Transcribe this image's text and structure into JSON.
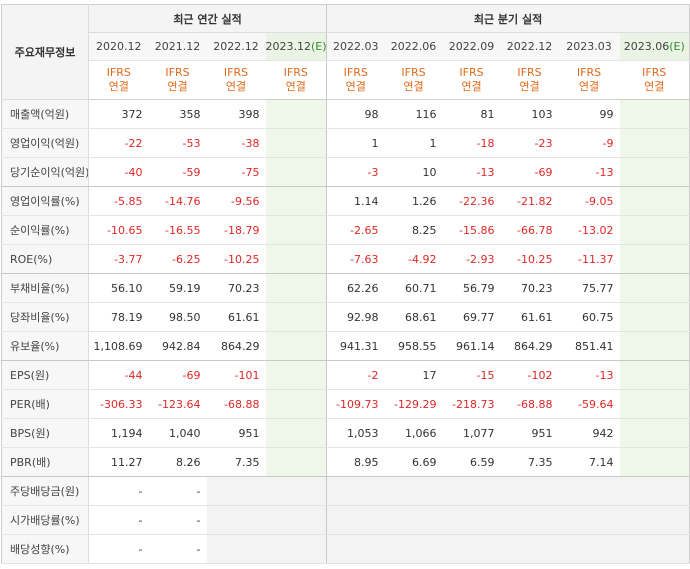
{
  "table": {
    "corner_label": "주요재무정보",
    "annual_title": "최근 연간 실적",
    "quarterly_title": "최근 분기 실적",
    "ifrs_line1": "IFRS",
    "ifrs_line2": "연결",
    "periods": [
      {
        "label": "2020.12",
        "est": ""
      },
      {
        "label": "2021.12",
        "est": ""
      },
      {
        "label": "2022.12",
        "est": ""
      },
      {
        "label": "2023.12",
        "est": "(E)"
      },
      {
        "label": "2022.03",
        "est": ""
      },
      {
        "label": "2022.06",
        "est": ""
      },
      {
        "label": "2022.09",
        "est": ""
      },
      {
        "label": "2022.12",
        "est": ""
      },
      {
        "label": "2023.03",
        "est": ""
      },
      {
        "label": "2023.06",
        "est": "(E)"
      }
    ],
    "rows": [
      {
        "label": "매출액(억원)",
        "values": [
          "372",
          "358",
          "398",
          "",
          "98",
          "116",
          "81",
          "103",
          "99",
          ""
        ]
      },
      {
        "label": "영업이익(억원)",
        "values": [
          "-22",
          "-53",
          "-38",
          "",
          "1",
          "1",
          "-18",
          "-23",
          "-9",
          ""
        ]
      },
      {
        "label": "당기순이익(억원)",
        "values": [
          "-40",
          "-59",
          "-75",
          "",
          "-3",
          "10",
          "-13",
          "-69",
          "-13",
          ""
        ]
      },
      {
        "label": "영업이익률(%)",
        "values": [
          "-5.85",
          "-14.76",
          "-9.56",
          "",
          "1.14",
          "1.26",
          "-22.36",
          "-21.82",
          "-9.05",
          ""
        ]
      },
      {
        "label": "순이익률(%)",
        "values": [
          "-10.65",
          "-16.55",
          "-18.79",
          "",
          "-2.65",
          "8.25",
          "-15.86",
          "-66.78",
          "-13.02",
          ""
        ]
      },
      {
        "label": "ROE(%)",
        "values": [
          "-3.77",
          "-6.25",
          "-10.25",
          "",
          "-7.63",
          "-4.92",
          "-2.93",
          "-10.25",
          "-11.37",
          ""
        ]
      },
      {
        "label": "부채비율(%)",
        "values": [
          "56.10",
          "59.19",
          "70.23",
          "",
          "62.26",
          "60.71",
          "56.79",
          "70.23",
          "75.77",
          ""
        ]
      },
      {
        "label": "당좌비율(%)",
        "values": [
          "78.19",
          "98.50",
          "61.61",
          "",
          "92.98",
          "68.61",
          "69.77",
          "61.61",
          "60.75",
          ""
        ]
      },
      {
        "label": "유보율(%)",
        "values": [
          "1,108.69",
          "942.84",
          "864.29",
          "",
          "941.31",
          "958.55",
          "961.14",
          "864.29",
          "851.41",
          ""
        ]
      },
      {
        "label": "EPS(원)",
        "values": [
          "-44",
          "-69",
          "-101",
          "",
          "-2",
          "17",
          "-15",
          "-102",
          "-13",
          ""
        ]
      },
      {
        "label": "PER(배)",
        "values": [
          "-306.33",
          "-123.64",
          "-68.88",
          "",
          "-109.73",
          "-129.29",
          "-218.73",
          "-68.88",
          "-59.64",
          ""
        ]
      },
      {
        "label": "BPS(원)",
        "values": [
          "1,194",
          "1,040",
          "951",
          "",
          "1,053",
          "1,066",
          "1,077",
          "951",
          "942",
          ""
        ]
      },
      {
        "label": "PBR(배)",
        "values": [
          "11.27",
          "8.26",
          "7.35",
          "",
          "8.95",
          "6.69",
          "6.59",
          "7.35",
          "7.14",
          ""
        ]
      },
      {
        "label": "주당배당금(원)",
        "values": [
          "-",
          "-",
          "",
          "",
          "",
          "",
          "",
          "",
          "",
          ""
        ]
      },
      {
        "label": "시가배당률(%)",
        "values": [
          "-",
          "-",
          "",
          "",
          "",
          "",
          "",
          "",
          "",
          ""
        ]
      },
      {
        "label": "배당성향(%)",
        "values": [
          "-",
          "-",
          "",
          "",
          "",
          "",
          "",
          "",
          "",
          ""
        ]
      }
    ]
  },
  "colors": {
    "negative": "#e02828",
    "ifrs": "#e06a1d",
    "estimate_bg": "#eef7ea",
    "estimate_tag": "#2f8f2f"
  }
}
